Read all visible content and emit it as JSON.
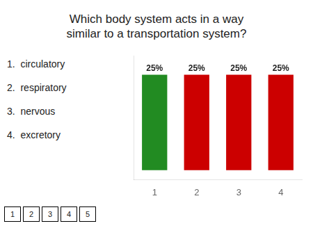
{
  "chart_data": {
    "type": "bar",
    "title": "Which body system acts in a way\nsimilar to a transportation system?",
    "categories": [
      1,
      2,
      3,
      4
    ],
    "values": [
      25,
      25,
      25,
      25
    ],
    "value_labels": [
      "25%",
      "25%",
      "25%",
      "25%"
    ],
    "colors": [
      "#228B22",
      "#CC0000",
      "#CC0000",
      "#CC0000"
    ],
    "data_labels": true,
    "ylim": [
      -2.5,
      30
    ],
    "tick_labels": "x",
    "grid": false,
    "annotations": [
      "1.  circulatory",
      "2.  respiratory",
      "3.  nervous",
      "4.  excretory"
    ],
    "buttons": [
      "1",
      "2",
      "3",
      "4",
      "5"
    ]
  }
}
